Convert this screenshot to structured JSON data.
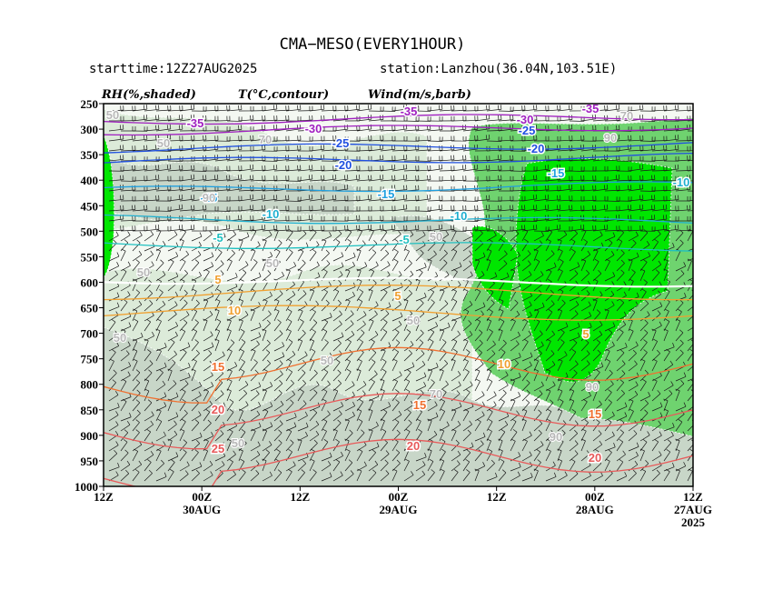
{
  "title": "CMA−MESO(EVERY1HOUR)",
  "starttime": "starttime:12Z27AUG2025",
  "station": "station:Lanzhou(36.04N,103.51E)",
  "legend": {
    "rh": "RH(%,shaded)",
    "temp": "T(°C,contour)",
    "wind": "Wind(m/s,barb)"
  },
  "colors": {
    "rh_50_70": "#dcebd9",
    "rh_70_90": "#c8d6c8",
    "rh_90_100": "#6fd36f",
    "rh_saturated": "#00e600",
    "temp_warm": "#e85a5a",
    "temp_mild": "#f0a030",
    "temp_cold": "#2050e0",
    "temp_very_cold": "#a020c0"
  },
  "chart_data": {
    "type": "heatmap",
    "y_axis": {
      "label": "",
      "ticks": [
        "250",
        "300",
        "350",
        "400",
        "450",
        "500",
        "550",
        "600",
        "650",
        "700",
        "750",
        "800",
        "850",
        "900",
        "950",
        "1000"
      ]
    },
    "x_axis": {
      "label": "",
      "ticks": [
        {
          "hour": "12Z",
          "date": ""
        },
        {
          "hour": "00Z",
          "date": "30AUG"
        },
        {
          "hour": "12Z",
          "date": ""
        },
        {
          "hour": "00Z",
          "date": "29AUG"
        },
        {
          "hour": "12Z",
          "date": ""
        },
        {
          "hour": "00Z",
          "date": "28AUG"
        },
        {
          "hour": "12Z",
          "date": "27AUG"
        }
      ],
      "year": "2025"
    },
    "temperature_contours": [
      {
        "value": -35,
        "color": "#a020c0",
        "level_hpa": 285
      },
      {
        "value": -30,
        "color": "#a020c0",
        "level_hpa": 305
      },
      {
        "value": -25,
        "color": "#2050e0",
        "level_hpa": 340
      },
      {
        "value": -20,
        "color": "#2050e0",
        "level_hpa": 365
      },
      {
        "value": -15,
        "color": "#20a0e0",
        "level_hpa": 420
      },
      {
        "value": -10,
        "color": "#20b0d0",
        "level_hpa": 475
      },
      {
        "value": -5,
        "color": "#20c0c0",
        "level_hpa": 525
      },
      {
        "value": 0,
        "color": "#ffffff",
        "level_hpa": 595
      },
      {
        "value": 5,
        "color": "#f0a030",
        "level_hpa": 620
      },
      {
        "value": 10,
        "color": "#f0a030",
        "level_hpa": 660
      },
      {
        "value": 15,
        "color": "#f07030",
        "level_hpa": 760
      },
      {
        "value": 20,
        "color": "#e85a5a",
        "level_hpa": 850
      },
      {
        "value": 25,
        "color": "#e85a5a",
        "level_hpa": 940
      }
    ],
    "contour_labels": [
      {
        "text": "-35",
        "color": "#a020c0"
      },
      {
        "text": "-35",
        "color": "#a020c0"
      },
      {
        "text": "-35",
        "color": "#a020c0"
      },
      {
        "text": "-30",
        "color": "#a020c0"
      },
      {
        "text": "-30",
        "color": "#a020c0"
      },
      {
        "text": "-25",
        "color": "#2050e0"
      },
      {
        "text": "-25",
        "color": "#2050e0"
      },
      {
        "text": "-20",
        "color": "#2050e0"
      },
      {
        "text": "-20",
        "color": "#2050e0"
      },
      {
        "text": "-15",
        "color": "#20a0e0"
      },
      {
        "text": "-15",
        "color": "#20a0e0"
      },
      {
        "text": "-15",
        "color": "#20a0e0"
      },
      {
        "text": "-10",
        "color": "#20b0d0"
      },
      {
        "text": "-10",
        "color": "#20b0d0"
      },
      {
        "text": "-10",
        "color": "#20b0d0"
      },
      {
        "text": "-5",
        "color": "#20c0c0"
      },
      {
        "text": "-5",
        "color": "#20c0c0"
      },
      {
        "text": "5",
        "color": "#f0a030"
      },
      {
        "text": "5",
        "color": "#f0a030"
      },
      {
        "text": "5",
        "color": "#f0a030"
      },
      {
        "text": "10",
        "color": "#f0a030"
      },
      {
        "text": "10",
        "color": "#f0a030"
      },
      {
        "text": "15",
        "color": "#f07030"
      },
      {
        "text": "15",
        "color": "#f07030"
      },
      {
        "text": "15",
        "color": "#f07030"
      },
      {
        "text": "20",
        "color": "#e85a5a"
      },
      {
        "text": "20",
        "color": "#e85a5a"
      },
      {
        "text": "20",
        "color": "#e85a5a"
      },
      {
        "text": "25",
        "color": "#e85a5a"
      }
    ],
    "rh_labels": [
      "50",
      "50",
      "50",
      "50",
      "50",
      "50",
      "50",
      "50",
      "50",
      "70",
      "70",
      "70",
      "90",
      "90",
      "90",
      "90"
    ]
  }
}
